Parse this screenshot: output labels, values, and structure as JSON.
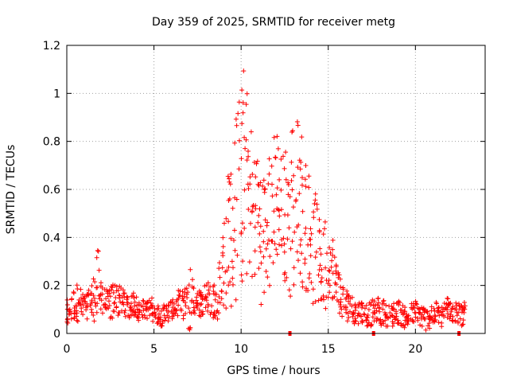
{
  "chart_data": {
    "type": "scatter",
    "title": "Day 359 of 2025, SRMTID for receiver metg",
    "xlabel": "GPS time / hours",
    "ylabel": "SRMTID / TECUs",
    "xlim": [
      0,
      24
    ],
    "ylim": [
      0,
      1.2
    ],
    "xticks": [
      0,
      5,
      10,
      15,
      20
    ],
    "yticks": [
      0,
      0.2,
      0.4,
      0.6,
      0.8,
      1,
      1.2
    ],
    "ytick_labels": [
      "0",
      "0.2",
      "0.4",
      "0.6",
      "0.8",
      "1",
      "1.2"
    ],
    "grid": true,
    "marker": "+",
    "color": "#ff0000",
    "series": [
      {
        "name": "SRMTID",
        "x": [
          0.0,
          0.2,
          0.4,
          0.6,
          0.8,
          1.0,
          1.2,
          1.4,
          1.6,
          1.8,
          2.0,
          2.2,
          2.4,
          2.6,
          2.8,
          3.0,
          3.2,
          3.4,
          3.6,
          3.8,
          4.0,
          4.2,
          4.4,
          4.6,
          4.8,
          5.0,
          5.2,
          5.4,
          5.6,
          5.8,
          6.0,
          6.2,
          6.4,
          6.6,
          6.8,
          7.0,
          7.2,
          7.4,
          7.6,
          7.8,
          8.0,
          8.2,
          8.4,
          8.6,
          8.8,
          9.0,
          9.2,
          9.4,
          9.6,
          9.8,
          10.0,
          10.2,
          10.4,
          10.6,
          10.8,
          11.0,
          11.2,
          11.4,
          11.6,
          11.8,
          12.0,
          12.2,
          12.4,
          12.6,
          12.8,
          13.0,
          13.2,
          13.4,
          13.6,
          13.8,
          14.0,
          14.2,
          14.4,
          14.6,
          14.8,
          15.0,
          15.2,
          15.4,
          15.6,
          15.8,
          16.0,
          16.2,
          16.4,
          16.6,
          16.8,
          17.0,
          17.2,
          17.4,
          17.6,
          17.8,
          18.0,
          18.2,
          18.4,
          18.6,
          18.8,
          19.0,
          19.2,
          19.4,
          19.6,
          19.8,
          20.0,
          20.2,
          20.4,
          20.6,
          20.8,
          21.0,
          21.2,
          21.4,
          21.6,
          21.8,
          22.0,
          22.2,
          22.4,
          22.6,
          22.8
        ],
        "y_center": [
          0.08,
          0.1,
          0.12,
          0.13,
          0.12,
          0.11,
          0.12,
          0.14,
          0.15,
          0.2,
          0.16,
          0.13,
          0.12,
          0.13,
          0.15,
          0.14,
          0.13,
          0.12,
          0.11,
          0.12,
          0.11,
          0.1,
          0.1,
          0.1,
          0.11,
          0.09,
          0.08,
          0.07,
          0.08,
          0.09,
          0.1,
          0.11,
          0.12,
          0.12,
          0.13,
          0.16,
          0.15,
          0.14,
          0.13,
          0.12,
          0.14,
          0.15,
          0.14,
          0.13,
          0.2,
          0.3,
          0.38,
          0.45,
          0.5,
          0.55,
          0.62,
          0.7,
          0.62,
          0.55,
          0.5,
          0.45,
          0.42,
          0.4,
          0.45,
          0.55,
          0.6,
          0.55,
          0.5,
          0.48,
          0.5,
          0.55,
          0.6,
          0.55,
          0.48,
          0.45,
          0.4,
          0.35,
          0.32,
          0.3,
          0.28,
          0.3,
          0.28,
          0.22,
          0.18,
          0.14,
          0.12,
          0.11,
          0.1,
          0.09,
          0.09,
          0.09,
          0.08,
          0.08,
          0.09,
          0.1,
          0.08,
          0.09,
          0.08,
          0.07,
          0.08,
          0.09,
          0.08,
          0.07,
          0.07,
          0.08,
          0.09,
          0.08,
          0.07,
          0.06,
          0.07,
          0.08,
          0.08,
          0.07,
          0.08,
          0.1,
          0.11,
          0.1,
          0.09,
          0.08,
          0.08
        ],
        "y_spread": [
          0.06,
          0.06,
          0.07,
          0.08,
          0.07,
          0.06,
          0.06,
          0.07,
          0.1,
          0.15,
          0.08,
          0.06,
          0.06,
          0.08,
          0.07,
          0.07,
          0.06,
          0.05,
          0.05,
          0.05,
          0.05,
          0.05,
          0.04,
          0.04,
          0.04,
          0.04,
          0.04,
          0.04,
          0.04,
          0.04,
          0.04,
          0.05,
          0.06,
          0.06,
          0.07,
          0.2,
          0.08,
          0.06,
          0.06,
          0.06,
          0.07,
          0.08,
          0.08,
          0.07,
          0.12,
          0.2,
          0.3,
          0.35,
          0.35,
          0.45,
          0.45,
          0.42,
          0.4,
          0.35,
          0.3,
          0.3,
          0.3,
          0.28,
          0.3,
          0.3,
          0.3,
          0.3,
          0.3,
          0.3,
          0.35,
          0.35,
          0.3,
          0.32,
          0.3,
          0.28,
          0.26,
          0.24,
          0.22,
          0.2,
          0.2,
          0.15,
          0.14,
          0.12,
          0.1,
          0.08,
          0.07,
          0.06,
          0.06,
          0.05,
          0.05,
          0.05,
          0.05,
          0.05,
          0.05,
          0.05,
          0.05,
          0.05,
          0.05,
          0.05,
          0.05,
          0.05,
          0.05,
          0.05,
          0.05,
          0.05,
          0.05,
          0.05,
          0.05,
          0.05,
          0.05,
          0.05,
          0.05,
          0.05,
          0.05,
          0.06,
          0.06,
          0.06,
          0.05,
          0.05,
          0.05
        ],
        "points_per_x": 9
      }
    ],
    "rug_x": [
      12.8,
      17.6,
      22.5
    ]
  }
}
